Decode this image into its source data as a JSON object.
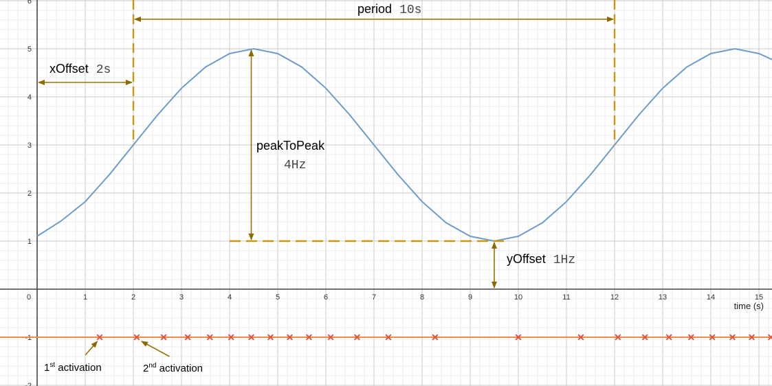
{
  "chart_data": {
    "type": "line",
    "xlabel": "time (s)",
    "xlim": [
      0,
      15.4
    ],
    "ylim": [
      -2,
      6
    ],
    "x_ticks": [
      "0",
      "1",
      "2",
      "3",
      "4",
      "5",
      "6",
      "7",
      "8",
      "9",
      "10",
      "11",
      "12",
      "13",
      "14",
      "15"
    ],
    "y_ticks": [
      "-2",
      "-1",
      "1",
      "2",
      "3",
      "4",
      "5",
      "6"
    ],
    "grid": true,
    "series": [
      {
        "kind": "sine",
        "color": "#6b9ccb",
        "x": [
          0,
          0.5,
          1,
          1.5,
          2,
          2.5,
          3,
          3.5,
          4,
          4.5,
          5,
          5.5,
          6,
          6.5,
          7,
          7.5,
          8,
          8.5,
          9,
          9.5,
          10,
          10.5,
          11,
          11.5,
          12,
          12.5,
          13,
          13.5,
          14,
          14.5,
          15,
          15.4
        ],
        "y": [
          1.1,
          1.42,
          1.82,
          2.38,
          3.0,
          3.62,
          4.18,
          4.62,
          4.9,
          5.0,
          4.9,
          4.62,
          4.18,
          3.62,
          3.0,
          2.38,
          1.82,
          1.38,
          1.1,
          1.0,
          1.1,
          1.38,
          1.82,
          2.38,
          3.0,
          3.62,
          4.18,
          4.62,
          4.9,
          5.0,
          4.9,
          4.72
        ]
      },
      {
        "kind": "baseline",
        "color": "#f08a4b",
        "y": -1
      }
    ],
    "activations": {
      "color": "#e0533a",
      "y": -1,
      "x": [
        1.3,
        2.07,
        2.63,
        3.13,
        3.59,
        4.03,
        4.45,
        4.85,
        5.25,
        5.65,
        6.1,
        6.65,
        7.3,
        8.27,
        10.0,
        11.3,
        12.07,
        12.63,
        13.13,
        13.59,
        14.03,
        14.45,
        14.85,
        15.25
      ]
    },
    "annotations": {
      "period": {
        "label": "period",
        "value": "10s"
      },
      "x_offset": {
        "label": "xOffset",
        "value": "2s"
      },
      "peak_to_peak": {
        "label": "peakToPeak",
        "value": "4Hz"
      },
      "y_offset": {
        "label": "yOffset",
        "value": "1Hz"
      },
      "first_activation": {
        "main": "1",
        "sup": "st",
        "rest": " activation"
      },
      "second_activation": {
        "main": "2",
        "sup": "nd",
        "rest": " activation"
      },
      "color": "#9a7200",
      "dash_color": "#c9970d"
    }
  }
}
